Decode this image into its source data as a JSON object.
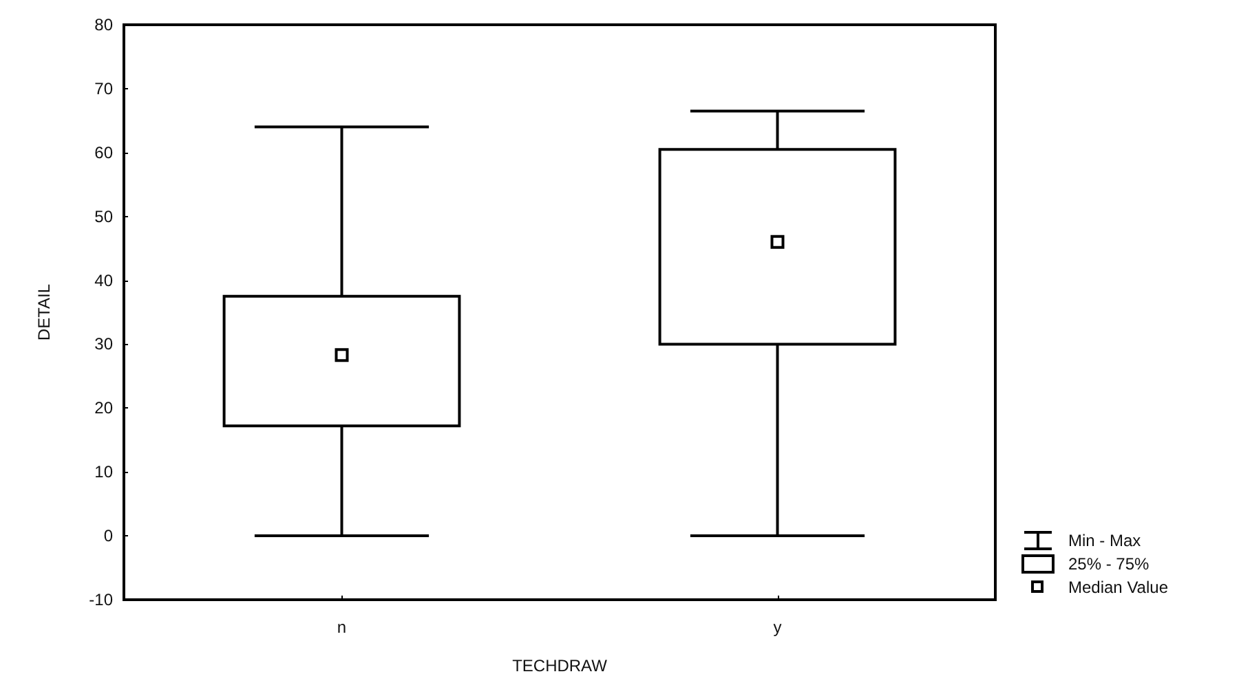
{
  "chart_data": {
    "type": "box",
    "xlabel": "TECHDRAW",
    "ylabel": "DETAIL",
    "categories": [
      "n",
      "y"
    ],
    "boxes": [
      {
        "low": 0,
        "q1": 17.2,
        "median": 28.3,
        "q3": 37.5,
        "high": 64
      },
      {
        "low": 0,
        "q1": 30,
        "median": 46,
        "q3": 60.5,
        "high": 66.5
      }
    ],
    "color": "#000000",
    "ylim": [
      -10,
      80
    ],
    "yticks": [
      -10,
      0,
      10,
      20,
      30,
      40,
      50,
      60,
      70,
      80
    ],
    "grid": false,
    "marker": "square",
    "annotations": [
      "Min - Max",
      "25% - 75%",
      "Median Value"
    ]
  }
}
